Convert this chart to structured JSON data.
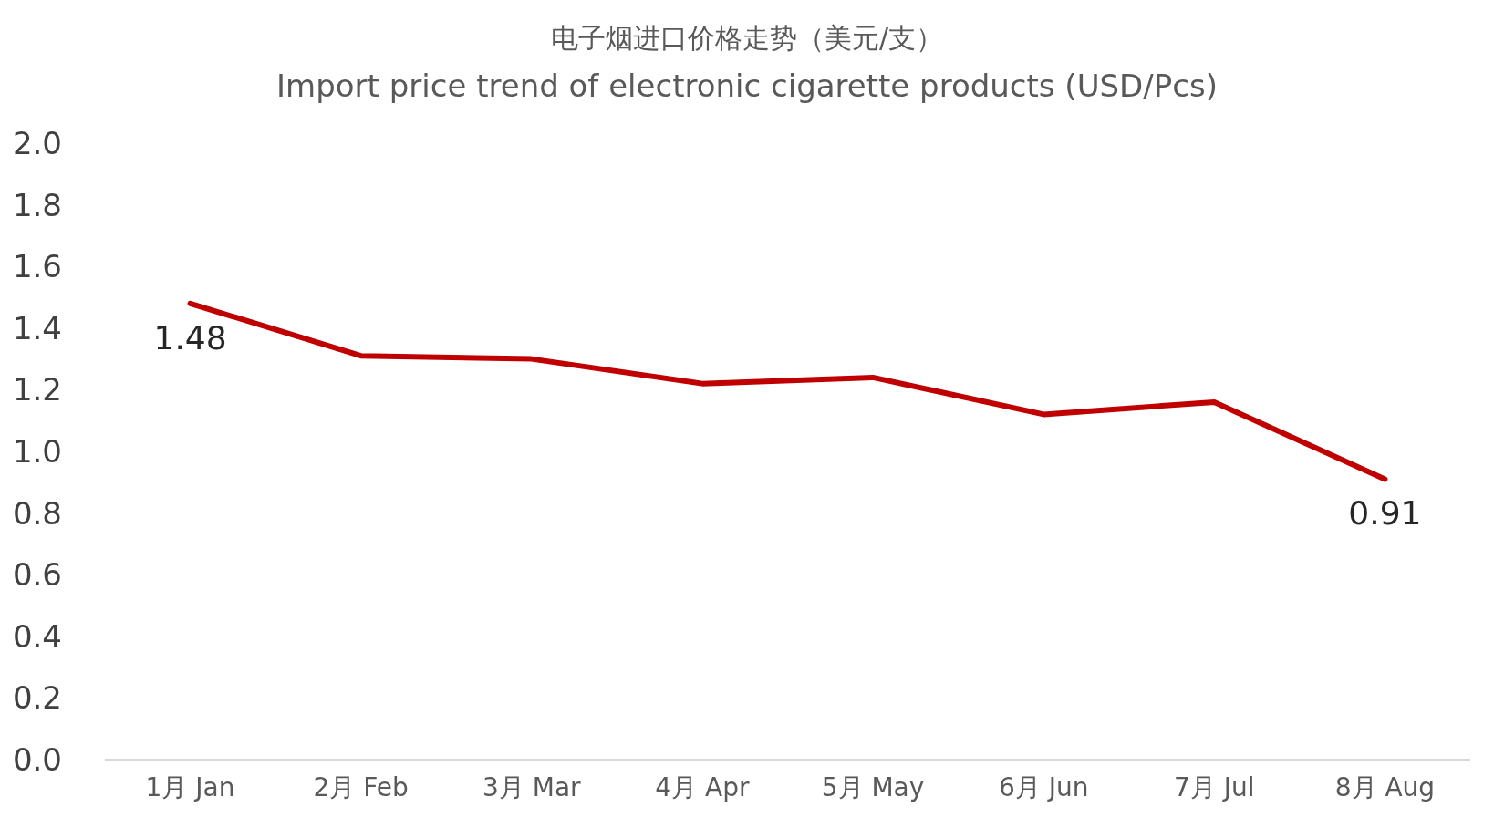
{
  "chart_data": {
    "type": "line",
    "title": "电子烟进口价格走势（美元/支）",
    "subtitle": "Import price trend of electronic cigarette products (USD/Pcs)",
    "categories": [
      "1月 Jan",
      "2月 Feb",
      "3月 Mar",
      "4月 Apr",
      "5月 May",
      "6月 Jun",
      "7月 Jul",
      "8月 Aug"
    ],
    "series": [
      {
        "color": "#c00000",
        "values": [
          1.48,
          1.31,
          1.3,
          1.22,
          1.24,
          1.12,
          1.16,
          0.91
        ],
        "value_labels": [
          "1.48",
          null,
          null,
          null,
          null,
          null,
          null,
          "0.91"
        ]
      }
    ],
    "ylim": [
      0,
      2.0
    ],
    "yticks": [
      {
        "value": 0,
        "label": "0.0"
      },
      {
        "value": 0.2,
        "label": "0.2"
      },
      {
        "value": 0.4,
        "label": "0.4"
      },
      {
        "value": 0.6,
        "label": "0.6"
      },
      {
        "value": 0.8,
        "label": "0.8"
      },
      {
        "value": 1.0,
        "label": "1.0"
      },
      {
        "value": 1.2,
        "label": "1.2"
      },
      {
        "value": 1.4,
        "label": "1.4"
      },
      {
        "value": 1.6,
        "label": "1.6"
      },
      {
        "value": 1.8,
        "label": "1.8"
      },
      {
        "value": 2.0,
        "label": "2.0"
      }
    ],
    "grid": false,
    "marker": "none",
    "line_style": "solid"
  }
}
